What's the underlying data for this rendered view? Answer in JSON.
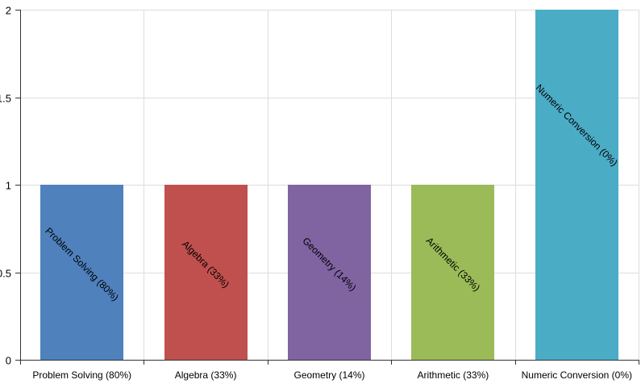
{
  "chart_data": {
    "type": "bar",
    "title": "",
    "xlabel": "",
    "ylabel": "",
    "categories": [
      "Problem Solving (80%)",
      "Algebra (33%)",
      "Geometry (14%)",
      "Arithmetic (33%)",
      "Numeric Conversion (0%)"
    ],
    "values": [
      1,
      1,
      1,
      1,
      2
    ],
    "colors": [
      "#4f81bd",
      "#c0504d",
      "#8064a2",
      "#9bbb59",
      "#4bacc6"
    ],
    "bar_labels": [
      "Problem Solving (80%)",
      "Algebra (33%)",
      "Geometry (14%)",
      "Arithmetic (33%)",
      "Numeric Conversion (0%)"
    ],
    "ylim": [
      0,
      2
    ],
    "yticks": [
      0,
      0.5,
      1,
      1.5,
      2
    ],
    "ytick_labels": [
      "0",
      "0.5",
      "1",
      "1.5",
      "2"
    ],
    "grid": true,
    "legend": "none"
  },
  "style": {
    "grid_color": "#dddddd",
    "axis_color": "#333333"
  }
}
